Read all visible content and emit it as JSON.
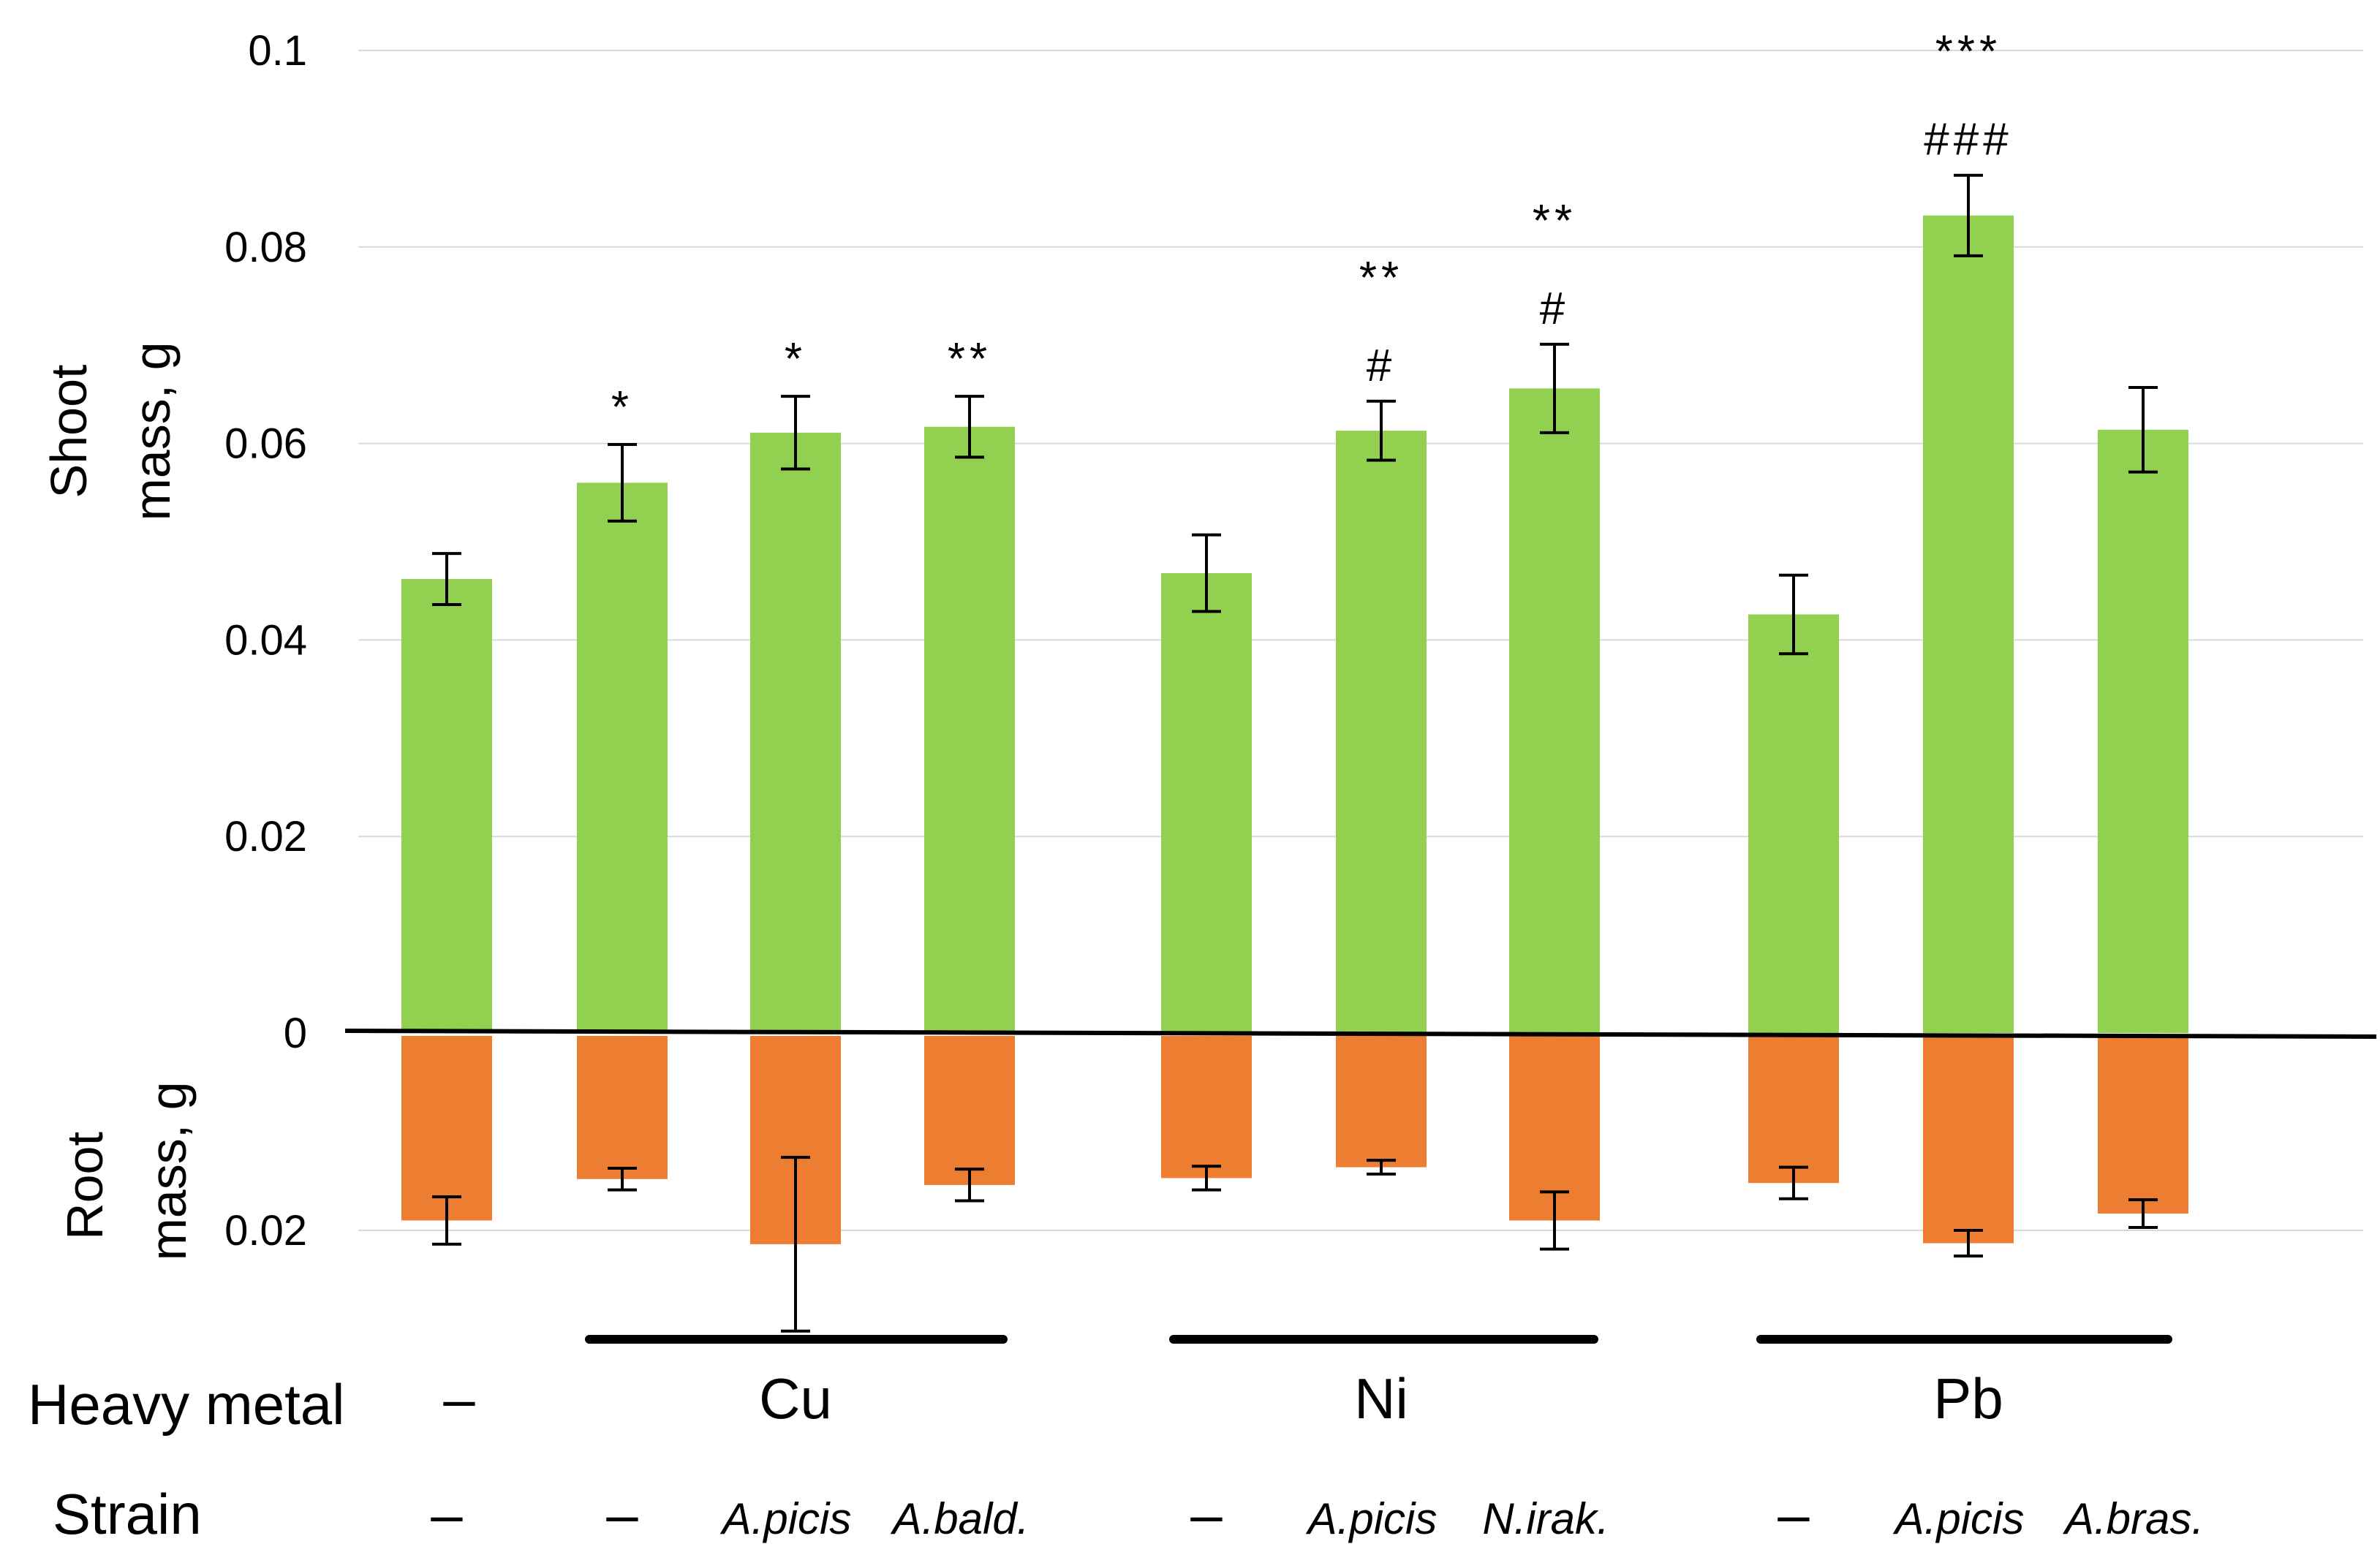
{
  "chart_data": {
    "type": "bar",
    "title": "",
    "ylabel_shoot": "Shoot mass, g",
    "ylabel_root": "Root mass, g",
    "ylim_shoot": [
      0,
      0.1
    ],
    "ylim_root": [
      0,
      0.02
    ],
    "yticks_shoot": [
      "0",
      "0.02",
      "0.04",
      "0.06",
      "0.08",
      "0.1"
    ],
    "yticks_root": [
      "0.02"
    ],
    "grid": true,
    "colors": {
      "shoot": "#92d050",
      "root": "#ed7d31"
    },
    "row_labels": {
      "metal": "Heavy metal",
      "strain": "Strain"
    },
    "groups": [
      {
        "metal": "–",
        "underline": false
      },
      {
        "metal": "Cu",
        "underline": true
      },
      {
        "metal": "Ni",
        "underline": true
      },
      {
        "metal": "Pb",
        "underline": true
      }
    ],
    "bars": [
      {
        "group": 0,
        "strain": "–",
        "strain_italic": false,
        "shoot": 0.0462,
        "shoot_err": 0.0026,
        "root": 0.019,
        "root_err": 0.0024,
        "sig_star": "",
        "sig_hash": ""
      },
      {
        "group": 1,
        "strain": "–",
        "strain_italic": false,
        "shoot": 0.056,
        "shoot_err": 0.0039,
        "root": 0.0148,
        "root_err": 0.0011,
        "sig_star": "*",
        "sig_hash": ""
      },
      {
        "group": 1,
        "strain": "A.picis",
        "strain_italic": true,
        "shoot": 0.0611,
        "shoot_err": 0.0037,
        "root": 0.0214,
        "root_err": 0.0088,
        "sig_star": "*",
        "sig_hash": ""
      },
      {
        "group": 1,
        "strain": "A.bald.",
        "strain_italic": true,
        "shoot": 0.0617,
        "shoot_err": 0.0031,
        "root": 0.0154,
        "root_err": 0.0016,
        "sig_star": "**",
        "sig_hash": ""
      },
      {
        "group": 2,
        "strain": "–",
        "strain_italic": false,
        "shoot": 0.0468,
        "shoot_err": 0.0039,
        "root": 0.0147,
        "root_err": 0.0012,
        "sig_star": "",
        "sig_hash": ""
      },
      {
        "group": 2,
        "strain": "A.picis",
        "strain_italic": true,
        "shoot": 0.0613,
        "shoot_err": 0.003,
        "root": 0.0136,
        "root_err": 0.0007,
        "sig_star": "**",
        "sig_hash": "#"
      },
      {
        "group": 2,
        "strain": "N.irak.",
        "strain_italic": true,
        "shoot": 0.0656,
        "shoot_err": 0.0045,
        "root": 0.019,
        "root_err": 0.0029,
        "sig_star": "**",
        "sig_hash": "#"
      },
      {
        "group": 3,
        "strain": "–",
        "strain_italic": false,
        "shoot": 0.0426,
        "shoot_err": 0.004,
        "root": 0.0152,
        "root_err": 0.0016,
        "sig_star": "",
        "sig_hash": ""
      },
      {
        "group": 3,
        "strain": "A.picis",
        "strain_italic": true,
        "shoot": 0.0832,
        "shoot_err": 0.0041,
        "root": 0.0213,
        "root_err": 0.0013,
        "sig_star": "***",
        "sig_hash": "###"
      },
      {
        "group": 3,
        "strain": "A.bras.",
        "strain_italic": true,
        "shoot": 0.0614,
        "shoot_err": 0.0043,
        "root": 0.0183,
        "root_err": 0.0014,
        "sig_star": "",
        "sig_hash": ""
      }
    ]
  }
}
